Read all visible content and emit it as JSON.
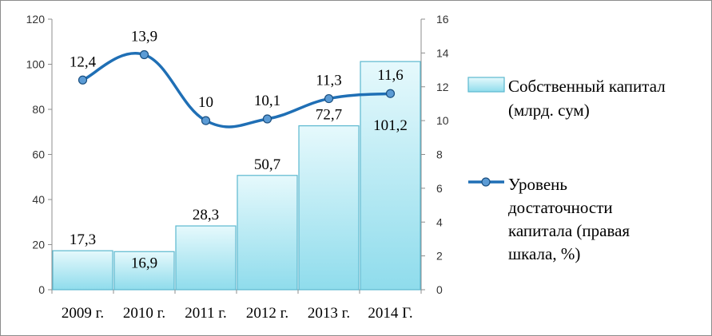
{
  "chart_data": {
    "type": "bar",
    "categories": [
      "2009 г.",
      "2010 г.",
      "2011 г.",
      "2012 г.",
      "2013 г.",
      "2014 Г."
    ],
    "series": [
      {
        "name": "Собственный капитал (млрд. сум)",
        "kind": "bar",
        "axis": "left",
        "values": [
          17.3,
          16.9,
          28.3,
          50.7,
          72.7,
          101.2
        ],
        "labels": [
          "17,3",
          "16,9",
          "28,3",
          "50,7",
          "72,7",
          "101,2"
        ]
      },
      {
        "name": "Уровень достаточности капитала (правая шкала, %)",
        "kind": "line",
        "axis": "right",
        "values": [
          12.4,
          13.9,
          10,
          10.1,
          11.3,
          11.6
        ],
        "labels": [
          "12,4",
          "13,9",
          "10",
          "10,1",
          "11,3",
          "11,6"
        ]
      }
    ],
    "ylim_left": [
      0,
      120
    ],
    "yticks_left": [
      "0",
      "20",
      "40",
      "60",
      "80",
      "100",
      "120"
    ],
    "ylim_right": [
      0,
      16
    ],
    "yticks_right": [
      "0",
      "2",
      "4",
      "6",
      "8",
      "10",
      "12",
      "14",
      "16"
    ],
    "grid": false,
    "legend": "right",
    "legend_lines": {
      "bar": [
        "Собственный капитал",
        "(млрд. сум)"
      ],
      "line": [
        "Уровень",
        "достаточности",
        "капитала (правая",
        "шкала, %)"
      ]
    },
    "colors": {
      "bar_fill_top": "#e6f9fc",
      "bar_fill_bottom": "#8fdcec",
      "bar_stroke": "#5bb8cf",
      "line": "#1f6fb5",
      "marker": "#5b9bd5"
    }
  }
}
